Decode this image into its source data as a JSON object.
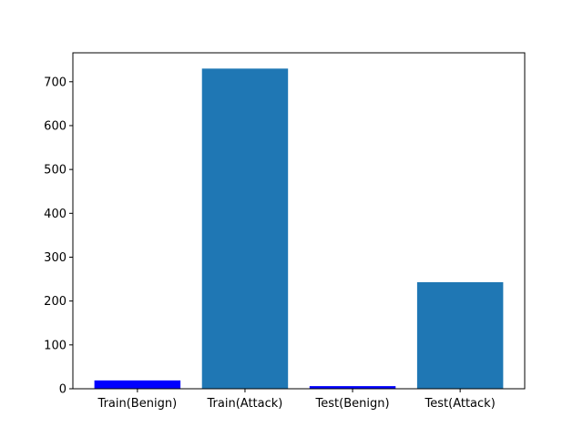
{
  "chart_data": {
    "type": "bar",
    "categories": [
      "Train(Benign)",
      "Train(Attack)",
      "Test(Benign)",
      "Test(Attack)"
    ],
    "values": [
      19,
      730,
      6,
      243
    ],
    "bar_colors": [
      "#0000ff",
      "#1f77b4",
      "#0000ff",
      "#1f77b4"
    ],
    "title": "",
    "xlabel": "",
    "ylabel": "",
    "ylim": [
      0,
      766
    ],
    "yticks": [
      0,
      100,
      200,
      300,
      400,
      500,
      600,
      700
    ],
    "grid": false
  }
}
